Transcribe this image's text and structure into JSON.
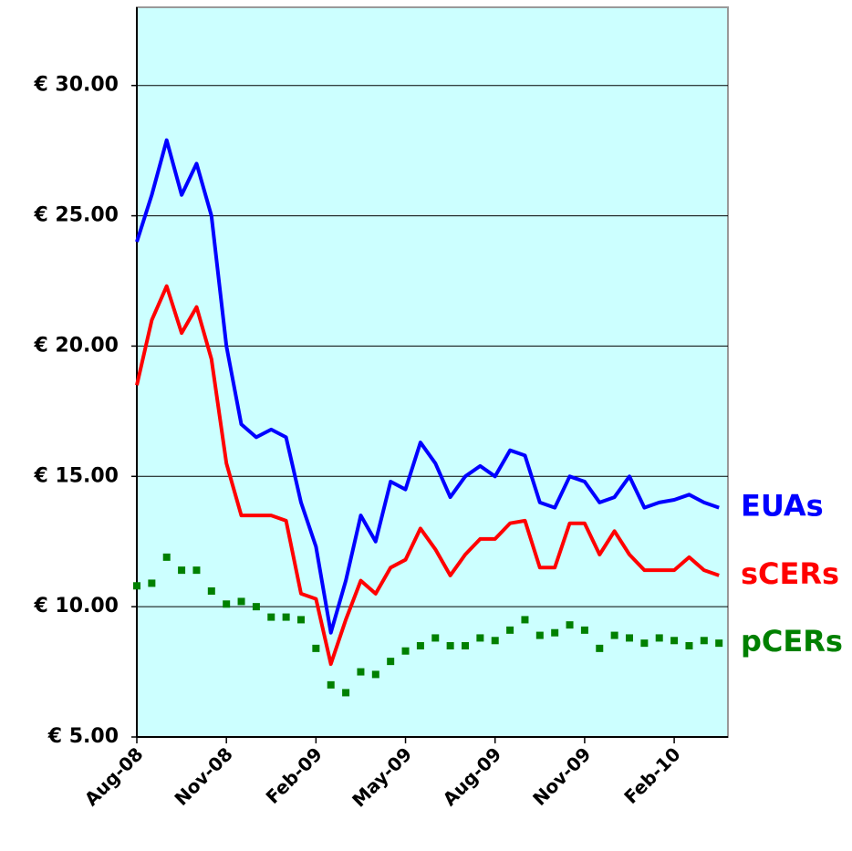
{
  "chart_data": {
    "type": "line",
    "categories": [
      "Aug-08",
      null,
      null,
      null,
      null,
      null,
      "Nov-08",
      null,
      null,
      null,
      null,
      null,
      "Feb-09",
      null,
      null,
      null,
      null,
      null,
      "May-09",
      null,
      null,
      null,
      null,
      null,
      "Aug-09",
      null,
      null,
      null,
      null,
      null,
      "Nov-09",
      null,
      null,
      null,
      null,
      null,
      "Feb-10",
      null,
      null,
      null
    ],
    "series": [
      {
        "name": "EUAs",
        "color": "#0000ff",
        "mode": "line",
        "values": [
          24.0,
          25.8,
          27.9,
          25.8,
          27.0,
          25.0,
          20.0,
          17.0,
          16.5,
          16.8,
          16.5,
          14.0,
          12.3,
          9.0,
          11.0,
          13.5,
          12.5,
          14.8,
          14.5,
          16.3,
          15.5,
          14.2,
          15.0,
          15.4,
          15.0,
          16.0,
          15.8,
          14.0,
          13.8,
          15.0,
          14.8,
          14.0,
          14.2,
          15.0,
          13.8,
          14.0,
          14.1,
          14.3,
          14.0,
          13.8
        ]
      },
      {
        "name": "sCERs",
        "color": "#ff0000",
        "mode": "line",
        "values": [
          18.5,
          21.0,
          22.3,
          20.5,
          21.5,
          19.5,
          15.5,
          13.5,
          13.5,
          13.5,
          13.3,
          10.5,
          10.3,
          7.8,
          9.5,
          11.0,
          10.5,
          11.5,
          11.8,
          13.0,
          12.2,
          11.2,
          12.0,
          12.6,
          12.6,
          13.2,
          13.3,
          11.5,
          11.5,
          13.2,
          13.2,
          12.0,
          12.9,
          12.0,
          11.4,
          11.4,
          11.4,
          11.9,
          11.4,
          11.2
        ]
      },
      {
        "name": "pCERs",
        "color": "#008000",
        "mode": "markers",
        "values": [
          10.8,
          10.9,
          11.9,
          11.4,
          11.4,
          10.6,
          10.1,
          10.2,
          10.0,
          9.6,
          9.6,
          9.5,
          8.4,
          7.0,
          6.7,
          7.5,
          7.4,
          7.9,
          8.3,
          8.5,
          8.8,
          8.5,
          8.5,
          8.8,
          8.7,
          9.1,
          9.5,
          8.9,
          9.0,
          9.3,
          9.1,
          8.4,
          8.9,
          8.8,
          8.6,
          8.8,
          8.7,
          8.5,
          8.7,
          8.6
        ]
      }
    ],
    "ylim": [
      5,
      33
    ],
    "yticks": [
      {
        "value": 5,
        "label": "€ 5.00"
      },
      {
        "value": 10,
        "label": "€ 10.00"
      },
      {
        "value": 15,
        "label": "€ 15.00"
      },
      {
        "value": 20,
        "label": "€ 20.00"
      },
      {
        "value": 25,
        "label": "€ 25.00"
      },
      {
        "value": 30,
        "label": "€ 30.00"
      }
    ],
    "grid": true,
    "background": "#ccffff"
  }
}
